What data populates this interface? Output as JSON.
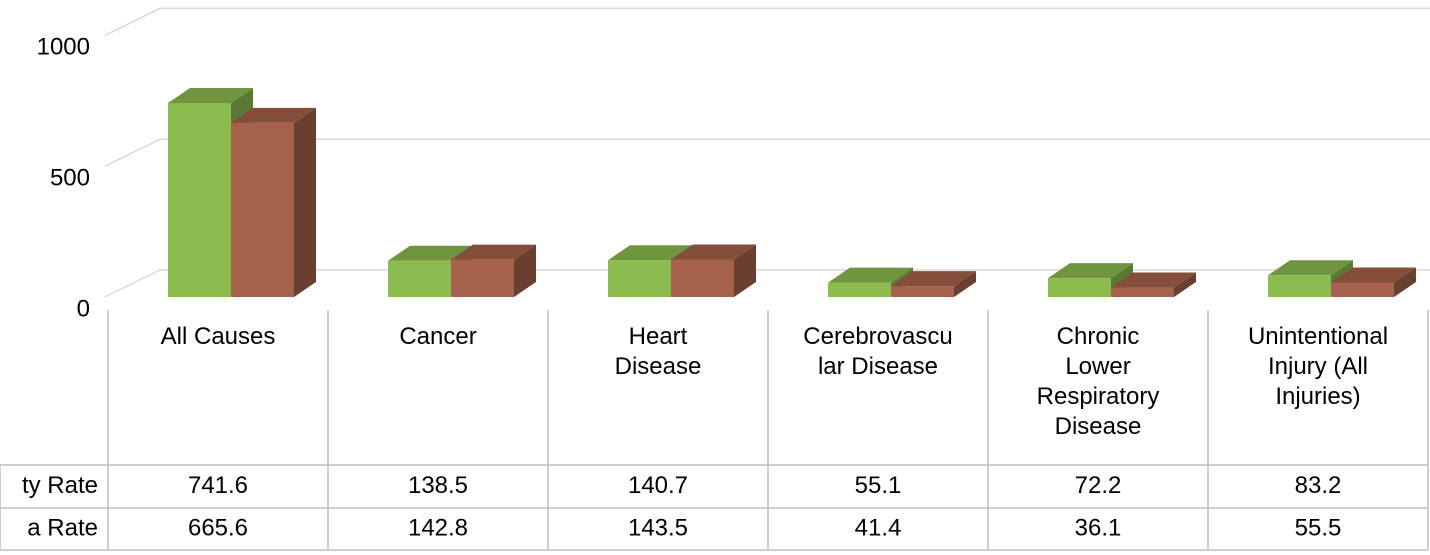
{
  "chart_data": {
    "type": "bar",
    "categories": [
      "All Causes",
      "Cancer",
      "Heart Disease",
      "Cerebrovascular Disease",
      "Chronic Lower Respiratory Disease",
      "Unintentional Injury (All Injuries)"
    ],
    "series": [
      {
        "name": "ty Rate",
        "color": "#8bbb4f",
        "values": [
          741.6,
          138.5,
          140.7,
          55.1,
          72.2,
          83.2
        ]
      },
      {
        "name": "a Rate",
        "color": "#a5614a",
        "values": [
          665.6,
          142.8,
          143.5,
          41.4,
          36.1,
          55.5
        ]
      }
    ],
    "ylim": [
      0,
      1000
    ],
    "yticks": [
      0,
      500,
      1000
    ],
    "grid": true,
    "data_table": true
  }
}
